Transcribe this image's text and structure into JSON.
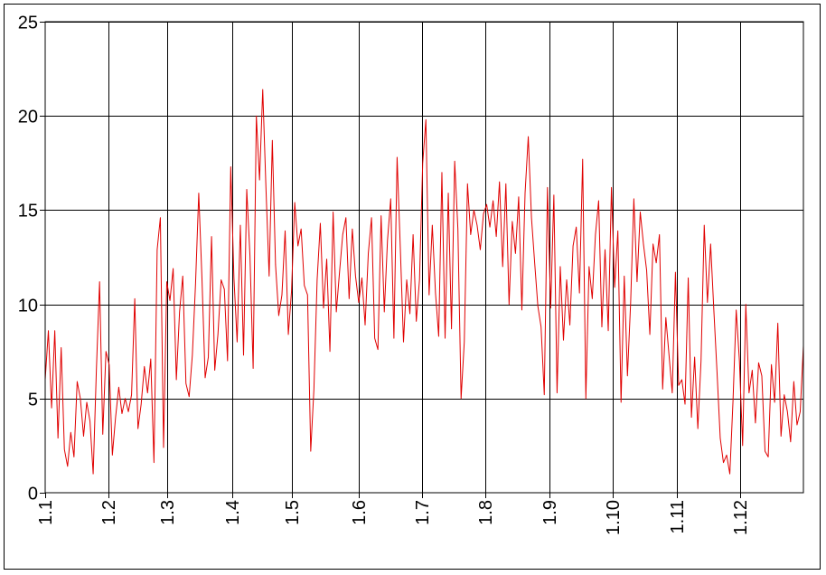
{
  "chart_data": {
    "type": "line",
    "title": "",
    "xlabel": "",
    "ylabel": "",
    "ylim": [
      0,
      25
    ],
    "y_ticks": [
      "0",
      "5",
      "10",
      "15",
      "20",
      "25"
    ],
    "x_ticks": [
      "1.1",
      "1.2",
      "1.3",
      "1.4",
      "1.5",
      "1.6",
      "1.7",
      "1.8",
      "1.9",
      "1.10",
      "1.11",
      "1.12"
    ],
    "grid": true,
    "legend": "none",
    "colors": {
      "series": "#e00000",
      "grid": "#000000",
      "frame": "#000000"
    },
    "series": [
      {
        "values": [
          6.0,
          8.6,
          4.5,
          8.6,
          2.9,
          7.7,
          2.3,
          1.4,
          3.2,
          1.9,
          5.9,
          5.0,
          3.0,
          4.8,
          3.8,
          1.0,
          6.5,
          11.2,
          3.1,
          7.5,
          6.8,
          2.0,
          4.0,
          5.6,
          4.2,
          5.0,
          4.3,
          5.2,
          10.3,
          3.4,
          4.7,
          6.7,
          5.3,
          7.1,
          1.6,
          12.9,
          14.6,
          2.4,
          11.2,
          10.2,
          11.9,
          6.0,
          9.6,
          11.5,
          5.8,
          5.1,
          7.3,
          11.1,
          15.9,
          11.4,
          6.1,
          7.2,
          13.6,
          6.5,
          8.4,
          11.3,
          10.8,
          7.0,
          17.3,
          11.4,
          8.0,
          14.2,
          7.3,
          16.1,
          12.6,
          6.6,
          20.0,
          16.6,
          21.4,
          16.2,
          11.5,
          18.7,
          12.1,
          9.4,
          10.5,
          13.9,
          8.4,
          10.7,
          15.4,
          13.1,
          14.0,
          11.0,
          10.5,
          2.2,
          5.5,
          11.3,
          14.3,
          9.8,
          12.4,
          7.5,
          14.9,
          9.6,
          11.7,
          13.7,
          14.6,
          10.3,
          14.0,
          11.5,
          10.1,
          11.4,
          8.9,
          12.7,
          14.6,
          8.2,
          7.6,
          14.7,
          9.6,
          13.4,
          15.6,
          8.2,
          17.8,
          13.0,
          8.0,
          11.3,
          9.5,
          13.7,
          9.1,
          11.3,
          17.5,
          19.8,
          10.5,
          14.2,
          10.6,
          8.3,
          17.0,
          8.2,
          15.9,
          8.7,
          17.6,
          14.0,
          5.0,
          8.0,
          16.4,
          13.7,
          15.0,
          14.2,
          12.9,
          14.8,
          15.3,
          14.1,
          15.5,
          13.6,
          16.5,
          12.0,
          16.4,
          10.0,
          14.4,
          12.7,
          15.7,
          9.7,
          15.9,
          18.9,
          14.6,
          12.2,
          9.9,
          8.8,
          5.2,
          16.2,
          9.8,
          15.8,
          5.3,
          12.0,
          8.1,
          11.3,
          8.9,
          13.1,
          14.1,
          10.6,
          17.7,
          5.0,
          12.0,
          10.3,
          13.7,
          15.5,
          8.8,
          12.9,
          8.6,
          16.2,
          10.9,
          13.9,
          4.8,
          11.5,
          6.2,
          10.1,
          15.6,
          11.2,
          14.9,
          13.2,
          11.8,
          8.4,
          13.2,
          12.2,
          13.7,
          5.5,
          9.3,
          7.3,
          5.3,
          11.7,
          5.7,
          6.0,
          4.7,
          11.4,
          4.0,
          7.2,
          3.4,
          7.0,
          14.2,
          10.1,
          13.2,
          9.7,
          6.4,
          2.9,
          1.6,
          2.0,
          1.0,
          4.9,
          9.7,
          7.0,
          2.5,
          10.0,
          5.3,
          6.5,
          3.7,
          6.9,
          6.2,
          2.2,
          1.9,
          6.8,
          4.8,
          9.0,
          3.0,
          5.2,
          4.3,
          2.7,
          5.9,
          3.6,
          4.3,
          7.8
        ]
      }
    ]
  }
}
